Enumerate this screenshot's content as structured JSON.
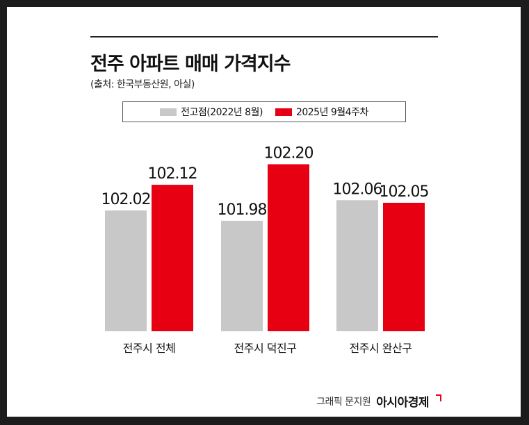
{
  "title": "전주 아파트 매매 가격지수",
  "source": "(출처: 한국부동산원, 아실)",
  "credit": {
    "graphic": "그래픽 문지원",
    "brand": "아시아경제"
  },
  "colors": {
    "peak": "#c8c8c8",
    "current": "#e60012"
  },
  "chart_data": {
    "type": "bar",
    "categories": [
      "전주시 전체",
      "전주시 덕진구",
      "전주시 완산구"
    ],
    "series": [
      {
        "name": "전고점(2022년 8월)",
        "values": [
          102.02,
          101.98,
          102.06
        ],
        "labels": [
          "102.02",
          "101.98",
          "102.06"
        ]
      },
      {
        "name": "2025년 9월4주차",
        "values": [
          102.12,
          102.2,
          102.05
        ],
        "labels": [
          "102.12",
          "102.20",
          "102.05"
        ]
      }
    ],
    "title": "전주 아파트 매매 가격지수",
    "xlabel": "",
    "ylabel": "",
    "ylim": [
      101.55,
      102.25
    ],
    "grid": false,
    "legend": "top-center"
  }
}
